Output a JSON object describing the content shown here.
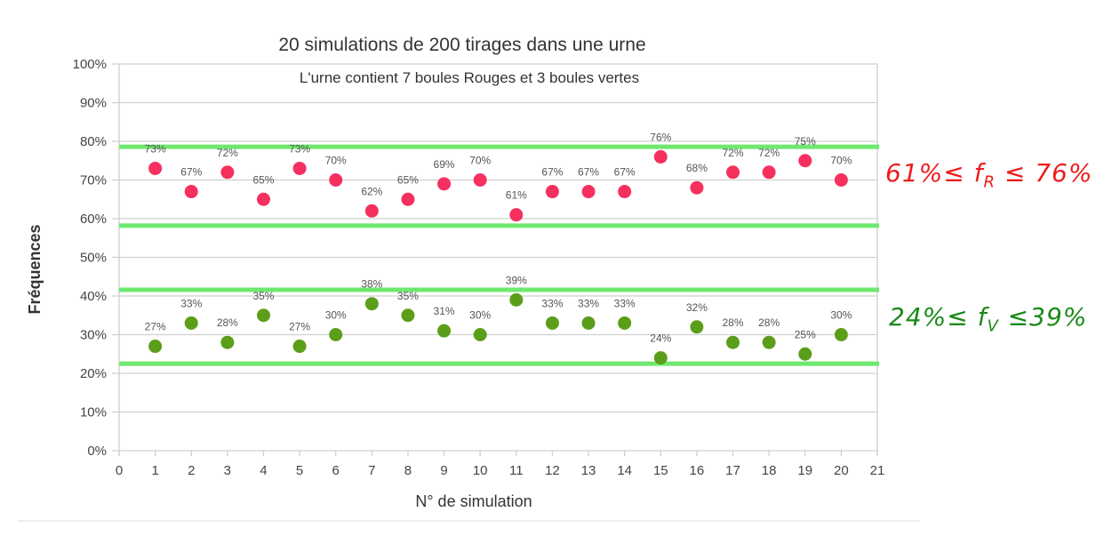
{
  "chart_data": {
    "type": "scatter",
    "title": "20 simulations de 200 tirages dans une urne",
    "subtitle": "L'urne contient 7 boules Rouges et 3 boules vertes",
    "xlabel": "N° de simulation",
    "ylabel": "Fréquences",
    "xlim": [
      0,
      21
    ],
    "ylim": [
      0,
      100
    ],
    "x_ticks": [
      "0",
      "1",
      "2",
      "3",
      "4",
      "5",
      "6",
      "7",
      "8",
      "9",
      "10",
      "11",
      "12",
      "13",
      "14",
      "15",
      "16",
      "17",
      "18",
      "19",
      "20",
      "21"
    ],
    "y_ticks": [
      "0%",
      "10%",
      "20%",
      "30%",
      "40%",
      "50%",
      "60%",
      "70%",
      "80%",
      "90%",
      "100%"
    ],
    "grid": true,
    "x": [
      1,
      2,
      3,
      4,
      5,
      6,
      7,
      8,
      9,
      10,
      11,
      12,
      13,
      14,
      15,
      16,
      17,
      18,
      19,
      20
    ],
    "series": [
      {
        "name": "Rouges",
        "color": "#f5305f",
        "values": [
          73,
          67,
          72,
          65,
          73,
          70,
          62,
          65,
          69,
          70,
          61,
          67,
          67,
          67,
          76,
          68,
          72,
          72,
          75,
          70
        ]
      },
      {
        "name": "Vertes",
        "color": "#5b9e1a",
        "values": [
          27,
          33,
          28,
          35,
          27,
          30,
          38,
          35,
          31,
          30,
          39,
          33,
          33,
          33,
          24,
          32,
          28,
          28,
          25,
          30
        ]
      }
    ],
    "bands": {
      "color": "#6ee86e",
      "values": [
        78.6,
        58.2,
        41.6,
        22.5
      ]
    },
    "annotations": [
      {
        "color": "#ee1c1c",
        "left": "61%≤ f",
        "sub": "R",
        "right": " ≤ 76%"
      },
      {
        "color": "#1a8a1a",
        "left": "24%≤ f",
        "sub": "V",
        "right": " ≤39%"
      }
    ]
  }
}
